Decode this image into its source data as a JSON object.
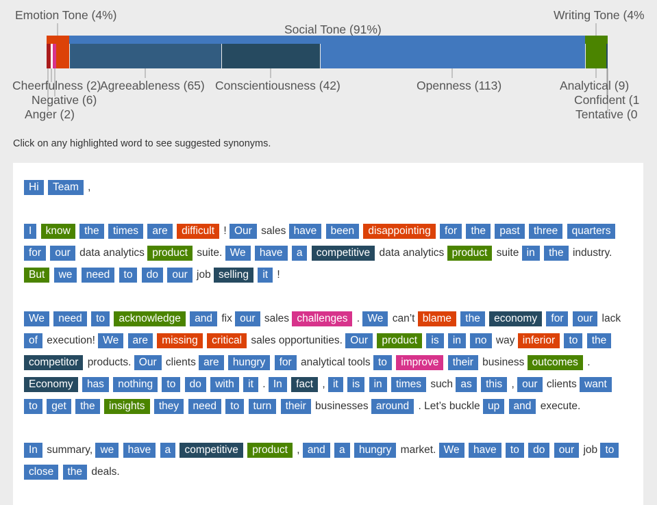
{
  "colors": {
    "emotion": "#dc4208",
    "social_openness": "#4178be",
    "agreeableness": "#325c80",
    "conscientiousness": "#264a60",
    "writing": "#4b8400",
    "anger": "#a91c1c",
    "negative": "#d7338b",
    "background": "#ececec",
    "document": "#ffffff"
  },
  "tone_summary": {
    "emotion_label": "Emotion Tone (4%)",
    "social_label": "Social Tone (91%)",
    "writing_label": "Writing Tone (4%",
    "emotion_pct": 4,
    "social_pct": 91,
    "writing_pct": 4,
    "traits": [
      {
        "label": "Cheerfulness (2)",
        "count": 2,
        "group": "emotion"
      },
      {
        "label": "Negative (6)",
        "count": 6,
        "group": "emotion"
      },
      {
        "label": "Anger (2)",
        "count": 2,
        "group": "emotion"
      },
      {
        "label": "Agreeableness (65)",
        "count": 65,
        "group": "social"
      },
      {
        "label": "Conscientiousness (42)",
        "count": 42,
        "group": "social"
      },
      {
        "label": "Openness (113)",
        "count": 113,
        "group": "social"
      },
      {
        "label": "Analytical (9)",
        "count": 9,
        "group": "writing"
      },
      {
        "label": "Confident (1",
        "count": 1,
        "group": "writing"
      },
      {
        "label": "Tentative (0",
        "count": 0,
        "group": "writing"
      }
    ]
  },
  "instruction": "Click on any highlighted word to see suggested synonyms.",
  "document": {
    "paragraphs": [
      [
        [
          "Hi",
          "o"
        ],
        [
          "Team",
          "o"
        ],
        [
          ",",
          "p"
        ]
      ],
      [
        [
          "I",
          "o"
        ],
        [
          "know",
          "g"
        ],
        [
          "the",
          "o"
        ],
        [
          "times",
          "o"
        ],
        [
          "are",
          "o"
        ],
        [
          "difficult",
          "d"
        ],
        [
          "!",
          "p"
        ],
        [
          "Our",
          "o"
        ],
        [
          "sales",
          "p"
        ],
        [
          "have",
          "o"
        ],
        [
          "been",
          "o"
        ],
        [
          "disappointing",
          "d"
        ],
        [
          "for",
          "o"
        ],
        [
          "the",
          "o"
        ],
        [
          "past",
          "o"
        ],
        [
          "three",
          "o"
        ],
        [
          "quarters",
          "o"
        ],
        [
          "for",
          "o"
        ],
        [
          "our",
          "o"
        ],
        [
          "data analytics",
          "p"
        ],
        [
          "product",
          "g"
        ],
        [
          "suite.",
          "p"
        ],
        [
          "We",
          "o"
        ],
        [
          "have",
          "o"
        ],
        [
          "a",
          "o"
        ],
        [
          "competitive",
          "c"
        ],
        [
          "data analytics",
          "p"
        ],
        [
          "product",
          "g"
        ],
        [
          "suite",
          "p"
        ],
        [
          "in",
          "o"
        ],
        [
          "the",
          "o"
        ],
        [
          "industry.",
          "p"
        ],
        [
          "But",
          "g"
        ],
        [
          "we",
          "o"
        ],
        [
          "need",
          "o"
        ],
        [
          "to",
          "o"
        ],
        [
          "do",
          "o"
        ],
        [
          "our",
          "o"
        ],
        [
          "job",
          "p"
        ],
        [
          "selling",
          "c"
        ],
        [
          "it",
          "o"
        ],
        [
          "!",
          "p"
        ]
      ],
      [
        [
          "We",
          "o"
        ],
        [
          "need",
          "o"
        ],
        [
          "to",
          "o"
        ],
        [
          "acknowledge",
          "g"
        ],
        [
          "and",
          "o"
        ],
        [
          "fix",
          "p"
        ],
        [
          "our",
          "o"
        ],
        [
          "sales",
          "p"
        ],
        [
          "challenges",
          "m"
        ],
        [
          ".",
          "p"
        ],
        [
          "We",
          "o"
        ],
        [
          "can’t",
          "p"
        ],
        [
          "blame",
          "d"
        ],
        [
          "the",
          "o"
        ],
        [
          "economy",
          "c"
        ],
        [
          "for",
          "o"
        ],
        [
          "our",
          "o"
        ],
        [
          "lack",
          "p"
        ],
        [
          "of",
          "o"
        ],
        [
          "execution!",
          "p"
        ],
        [
          "We",
          "o"
        ],
        [
          "are",
          "o"
        ],
        [
          "missing",
          "d"
        ],
        [
          "critical",
          "d"
        ],
        [
          "sales opportunities.",
          "p"
        ],
        [
          "Our",
          "o"
        ],
        [
          "product",
          "g"
        ],
        [
          "is",
          "o"
        ],
        [
          "in",
          "o"
        ],
        [
          "no",
          "o"
        ],
        [
          "way",
          "p"
        ],
        [
          "inferior",
          "d"
        ],
        [
          "to",
          "o"
        ],
        [
          "the",
          "o"
        ],
        [
          "competitor",
          "c"
        ],
        [
          "products.",
          "p"
        ],
        [
          "Our",
          "o"
        ],
        [
          "clients",
          "p"
        ],
        [
          "are",
          "o"
        ],
        [
          "hungry",
          "o"
        ],
        [
          "for",
          "o"
        ],
        [
          "analytical tools",
          "p"
        ],
        [
          "to",
          "o"
        ],
        [
          "improve",
          "m"
        ],
        [
          "their",
          "o"
        ],
        [
          "business",
          "p"
        ],
        [
          "outcomes",
          "g"
        ],
        [
          ".",
          "p"
        ],
        [
          "Economy",
          "c"
        ],
        [
          "has",
          "o"
        ],
        [
          "nothing",
          "o"
        ],
        [
          "to",
          "o"
        ],
        [
          "do",
          "o"
        ],
        [
          "with",
          "o"
        ],
        [
          "it",
          "o"
        ],
        [
          ".",
          "p"
        ],
        [
          "In",
          "o"
        ],
        [
          "fact",
          "c"
        ],
        [
          ",",
          "p"
        ],
        [
          "it",
          "o"
        ],
        [
          "is",
          "o"
        ],
        [
          "in",
          "o"
        ],
        [
          "times",
          "o"
        ],
        [
          "such",
          "p"
        ],
        [
          "as",
          "o"
        ],
        [
          "this",
          "o"
        ],
        [
          ",",
          "p"
        ],
        [
          "our",
          "o"
        ],
        [
          "clients",
          "p"
        ],
        [
          "want",
          "o"
        ],
        [
          "to",
          "o"
        ],
        [
          "get",
          "o"
        ],
        [
          "the",
          "o"
        ],
        [
          "insights",
          "g"
        ],
        [
          "they",
          "o"
        ],
        [
          "need",
          "o"
        ],
        [
          "to",
          "o"
        ],
        [
          "turn",
          "o"
        ],
        [
          "their",
          "o"
        ],
        [
          "businesses",
          "p"
        ],
        [
          "around",
          "o"
        ],
        [
          ". Let’s buckle",
          "p"
        ],
        [
          "up",
          "o"
        ],
        [
          "and",
          "o"
        ],
        [
          "execute.",
          "p"
        ]
      ],
      [
        [
          "In",
          "o"
        ],
        [
          "summary,",
          "p"
        ],
        [
          "we",
          "o"
        ],
        [
          "have",
          "o"
        ],
        [
          "a",
          "o"
        ],
        [
          "competitive",
          "c"
        ],
        [
          "product",
          "g"
        ],
        [
          ",",
          "p"
        ],
        [
          "and",
          "o"
        ],
        [
          "a",
          "o"
        ],
        [
          "hungry",
          "o"
        ],
        [
          "market.",
          "p"
        ],
        [
          "We",
          "o"
        ],
        [
          "have",
          "o"
        ],
        [
          "to",
          "o"
        ],
        [
          "do",
          "o"
        ],
        [
          "our",
          "o"
        ],
        [
          "job",
          "p"
        ],
        [
          "to",
          "o"
        ],
        [
          "close",
          "o"
        ],
        [
          "the",
          "o"
        ],
        [
          "deals.",
          "p"
        ]
      ]
    ]
  }
}
